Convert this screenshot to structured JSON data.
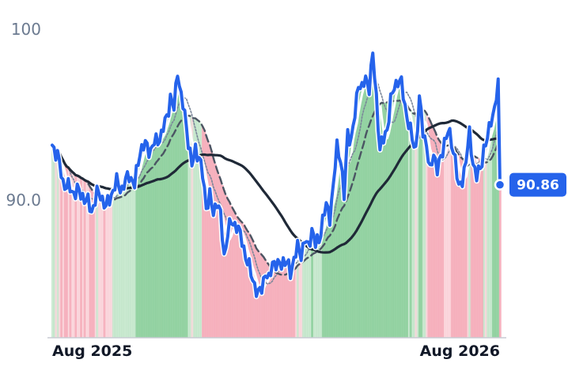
{
  "chart_data": {
    "type": "line",
    "y_ticks": [
      "100",
      "90.0"
    ],
    "y_tick_values": [
      100,
      90
    ],
    "ylim": [
      82,
      101.8
    ],
    "x_ticks": [
      "Aug 2025",
      "Aug 2026"
    ],
    "x_tick_positions": [
      0,
      240
    ],
    "n_points": 251,
    "last_value_label": "90.86",
    "last_value": 90.86,
    "grid": false,
    "legend": "none",
    "price_anchors": [
      [
        0,
        93.2
      ],
      [
        3,
        92.6
      ],
      [
        6,
        91.0
      ],
      [
        9,
        90.7
      ],
      [
        12,
        90.4
      ],
      [
        14,
        90.5
      ],
      [
        17,
        90.2
      ],
      [
        20,
        89.8
      ],
      [
        22,
        89.3
      ],
      [
        25,
        90.3
      ],
      [
        27,
        90.3
      ],
      [
        30,
        89.5
      ],
      [
        33,
        90.3
      ],
      [
        36,
        91.0
      ],
      [
        39,
        90.6
      ],
      [
        43,
        91.5
      ],
      [
        46,
        90.8
      ],
      [
        49,
        92.9
      ],
      [
        52,
        93.2
      ],
      [
        55,
        92.9
      ],
      [
        57,
        93.3
      ],
      [
        61,
        93.8
      ],
      [
        64,
        94.9
      ],
      [
        66,
        96.0
      ],
      [
        68,
        95.3
      ],
      [
        70,
        97.7
      ],
      [
        72,
        96.0
      ],
      [
        74,
        95.0
      ],
      [
        76,
        93.5
      ],
      [
        78,
        91.9
      ],
      [
        80,
        93.0
      ],
      [
        82,
        92.5
      ],
      [
        84,
        91.4
      ],
      [
        86,
        89.6
      ],
      [
        88,
        90.2
      ],
      [
        90,
        89.1
      ],
      [
        92,
        90.0
      ],
      [
        94,
        89.0
      ],
      [
        96,
        86.6
      ],
      [
        98,
        88.1
      ],
      [
        100,
        88.6
      ],
      [
        103,
        88.5
      ],
      [
        106,
        87.5
      ],
      [
        109,
        86.3
      ],
      [
        111,
        85.6
      ],
      [
        113,
        85.0
      ],
      [
        115,
        84.3
      ],
      [
        117,
        84.8
      ],
      [
        119,
        85.7
      ],
      [
        121,
        85.1
      ],
      [
        123,
        86.4
      ],
      [
        126,
        86.0
      ],
      [
        129,
        86.4
      ],
      [
        131,
        86.2
      ],
      [
        133,
        85.7
      ],
      [
        135,
        86.5
      ],
      [
        137,
        87.1
      ],
      [
        139,
        86.8
      ],
      [
        141,
        87.6
      ],
      [
        143,
        87.1
      ],
      [
        145,
        88.3
      ],
      [
        147,
        87.3
      ],
      [
        149,
        87.6
      ],
      [
        151,
        88.8
      ],
      [
        153,
        89.6
      ],
      [
        155,
        89.0
      ],
      [
        157,
        90.8
      ],
      [
        159,
        93.1
      ],
      [
        161,
        92.5
      ],
      [
        163,
        90.1
      ],
      [
        165,
        94.0
      ],
      [
        167,
        93.5
      ],
      [
        169,
        94.9
      ],
      [
        171,
        97.0
      ],
      [
        173,
        96.5
      ],
      [
        175,
        97.1
      ],
      [
        177,
        96.7
      ],
      [
        179,
        98.5
      ],
      [
        181,
        96.0
      ],
      [
        183,
        93.0
      ],
      [
        185,
        93.5
      ],
      [
        187,
        94.2
      ],
      [
        189,
        95.8
      ],
      [
        191,
        96.6
      ],
      [
        193,
        97.1
      ],
      [
        195,
        96.8
      ],
      [
        197,
        95.5
      ],
      [
        199,
        94.5
      ],
      [
        201,
        93.5
      ],
      [
        203,
        93.0
      ],
      [
        205,
        95.9
      ],
      [
        207,
        94.0
      ],
      [
        209,
        93.3
      ],
      [
        211,
        91.5
      ],
      [
        213,
        92.8
      ],
      [
        215,
        91.8
      ],
      [
        217,
        92.3
      ],
      [
        219,
        93.5
      ],
      [
        221,
        94.0
      ],
      [
        223,
        93.3
      ],
      [
        225,
        92.5
      ],
      [
        227,
        90.5
      ],
      [
        229,
        91.2
      ],
      [
        231,
        92.3
      ],
      [
        233,
        93.8
      ],
      [
        235,
        92.2
      ],
      [
        237,
        91.3
      ],
      [
        239,
        91.8
      ],
      [
        241,
        93.0
      ],
      [
        243,
        93.5
      ],
      [
        245,
        94.8
      ],
      [
        247,
        95.3
      ],
      [
        249,
        96.7
      ],
      [
        250,
        90.86
      ]
    ],
    "price_series": [
      {
        "name": "price",
        "color": "#2563eb",
        "width": 4
      }
    ],
    "fill_zones": {
      "green": "#86cc96",
      "red": "#f4a7b5"
    }
  }
}
